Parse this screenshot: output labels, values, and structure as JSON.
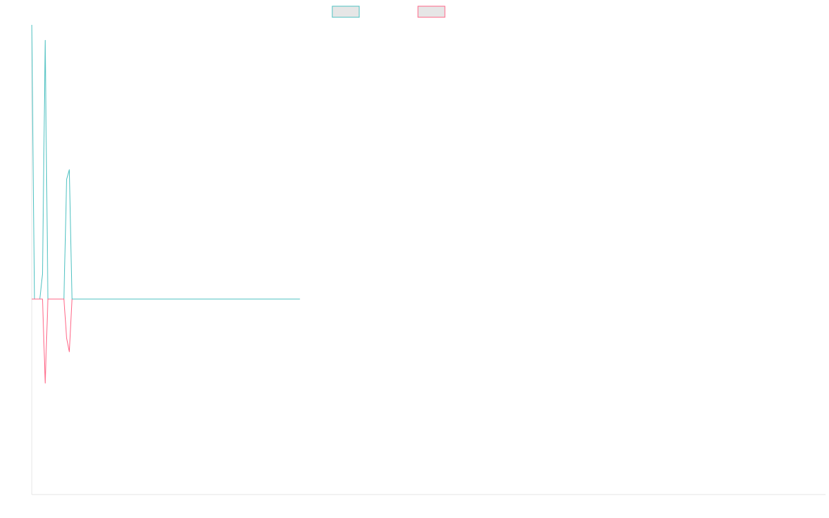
{
  "chart_data": {
    "type": "line",
    "title": "",
    "xlabel": "",
    "ylabel": "",
    "grid": false,
    "legend": "top-center",
    "xlim": [
      0,
      296
    ],
    "ylim": [
      -100,
      142
    ],
    "series": [
      {
        "color": "#4bc0c0",
        "fill": "#e6e6e6",
        "points": [
          [
            0,
            142
          ],
          [
            1,
            0
          ],
          [
            2,
            0
          ],
          [
            3,
            0
          ],
          [
            4,
            13
          ],
          [
            5,
            134
          ],
          [
            6,
            0
          ],
          [
            7,
            0
          ],
          [
            8,
            0
          ],
          [
            9,
            0
          ],
          [
            10,
            0
          ],
          [
            11,
            0
          ],
          [
            12,
            0
          ],
          [
            13,
            62
          ],
          [
            14,
            67
          ],
          [
            15,
            0
          ],
          [
            16,
            0
          ],
          [
            17,
            0
          ],
          [
            18,
            0
          ],
          [
            19,
            0
          ],
          [
            20,
            0
          ],
          [
            21,
            0
          ],
          [
            22,
            0
          ],
          [
            23,
            0
          ],
          [
            24,
            0
          ],
          [
            25,
            0
          ],
          [
            26,
            0
          ],
          [
            27,
            0
          ],
          [
            28,
            0
          ],
          [
            29,
            0
          ],
          [
            30,
            0
          ],
          [
            31,
            0
          ],
          [
            32,
            0
          ],
          [
            33,
            0
          ],
          [
            34,
            0
          ],
          [
            35,
            0
          ],
          [
            36,
            0
          ],
          [
            37,
            0
          ],
          [
            38,
            0
          ],
          [
            39,
            0
          ],
          [
            40,
            0
          ],
          [
            41,
            0
          ],
          [
            42,
            0
          ],
          [
            43,
            0
          ],
          [
            44,
            0
          ],
          [
            45,
            0
          ],
          [
            46,
            0
          ],
          [
            47,
            0
          ],
          [
            48,
            0
          ],
          [
            49,
            0
          ],
          [
            50,
            0
          ],
          [
            51,
            0
          ],
          [
            52,
            0
          ],
          [
            53,
            0
          ],
          [
            54,
            0
          ],
          [
            55,
            0
          ],
          [
            56,
            0
          ],
          [
            57,
            0
          ],
          [
            58,
            0
          ],
          [
            59,
            0
          ],
          [
            60,
            0
          ],
          [
            61,
            0
          ],
          [
            62,
            0
          ],
          [
            63,
            0
          ],
          [
            64,
            0
          ],
          [
            65,
            0
          ],
          [
            66,
            0
          ],
          [
            67,
            0
          ],
          [
            68,
            0
          ],
          [
            69,
            0
          ],
          [
            70,
            0
          ],
          [
            71,
            0
          ],
          [
            72,
            0
          ],
          [
            73,
            0
          ],
          [
            74,
            0
          ],
          [
            75,
            0
          ],
          [
            76,
            0
          ],
          [
            77,
            0
          ],
          [
            78,
            0
          ],
          [
            79,
            0
          ],
          [
            80,
            0
          ],
          [
            81,
            0
          ],
          [
            82,
            0
          ],
          [
            83,
            0
          ],
          [
            84,
            0
          ],
          [
            85,
            0
          ],
          [
            86,
            0
          ],
          [
            87,
            0
          ],
          [
            88,
            0
          ],
          [
            89,
            0
          ],
          [
            90,
            0
          ],
          [
            91,
            0
          ],
          [
            92,
            0
          ],
          [
            93,
            0
          ],
          [
            94,
            0
          ],
          [
            95,
            0
          ],
          [
            96,
            0
          ],
          [
            97,
            0
          ],
          [
            98,
            0
          ],
          [
            99,
            0
          ],
          [
            100,
            0
          ]
        ]
      },
      {
        "color": "#ff6384",
        "fill": "#e6e6e6",
        "points": [
          [
            0,
            0
          ],
          [
            1,
            0
          ],
          [
            2,
            0
          ],
          [
            3,
            0
          ],
          [
            4,
            0
          ],
          [
            5,
            -43
          ],
          [
            6,
            0
          ],
          [
            7,
            0
          ],
          [
            8,
            0
          ],
          [
            9,
            0
          ],
          [
            10,
            0
          ],
          [
            11,
            0
          ],
          [
            12,
            0
          ],
          [
            13,
            -20
          ],
          [
            14,
            -27
          ],
          [
            15,
            0
          ]
        ]
      }
    ]
  }
}
